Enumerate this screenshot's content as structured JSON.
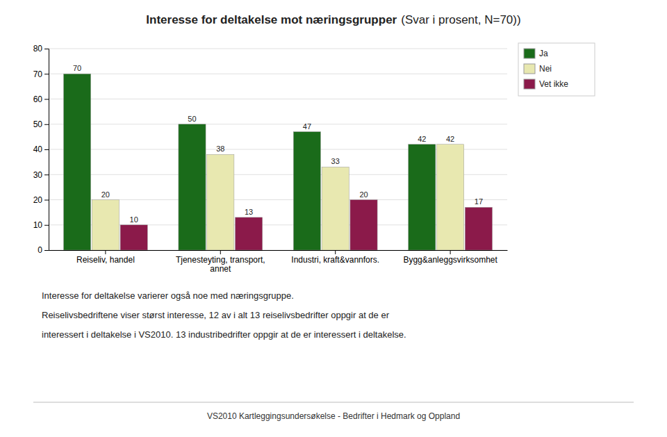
{
  "chart_data": {
    "type": "bar",
    "title": "Interesse for deltakelse mot næringsgrupper",
    "subtitle": "(Svar i prosent, N=70))",
    "categories": [
      "Reiseliv, handel",
      "Tjenesteyting, transport,\nannet",
      "Industri, kraft&vannfors.",
      "Bygg&anleggsvirksomhet"
    ],
    "series": [
      {
        "name": "Ja",
        "color": "#1a6b1a",
        "values": [
          70,
          50,
          47,
          42
        ]
      },
      {
        "name": "Nei",
        "color": "#e8e8b0",
        "values": [
          20,
          38,
          33,
          42
        ]
      },
      {
        "name": "Vet ikke",
        "color": "#8b1a4a",
        "values": [
          10,
          13,
          20,
          17
        ]
      }
    ],
    "ylim": [
      0,
      80
    ],
    "yticks": [
      0,
      10,
      20,
      30,
      40,
      50,
      60,
      70,
      80
    ],
    "grid": true,
    "legend": "upper right",
    "data_labels": true,
    "annotations": [
      "Interesse for deltakelse varierer også noe med næringsgruppe.",
      "Reiselivsbedriftene viser størst interesse, 12 av i alt 13 reiselivsbedrifter oppgir at de er",
      "interessert i deltakelse i VS2010. 13 industribedrifter oppgir at de er interessert i deltakelse.",
      "VS2010 Kartleggingsundersøkelse - Bedrifter i Hedmark og Oppland"
    ]
  }
}
